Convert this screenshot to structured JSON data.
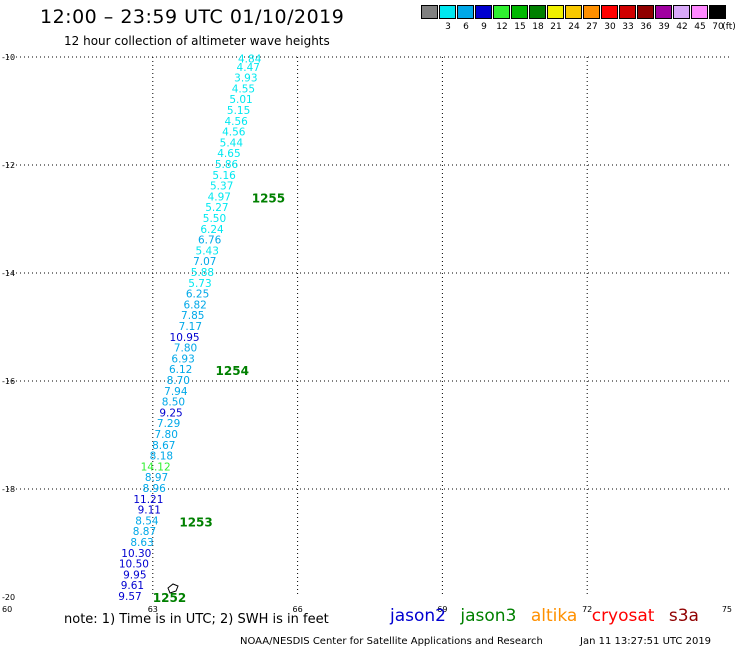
{
  "header": {
    "title": "12:00 – 23:59 UTC 01/10/2019",
    "subtitle": "12 hour collection of altimeter wave heights"
  },
  "color_scale": {
    "unit": "(ft)",
    "labels": [
      "3",
      "6",
      "9",
      "12",
      "15",
      "18",
      "21",
      "24",
      "27",
      "30",
      "33",
      "36",
      "39",
      "42",
      "45",
      "70"
    ],
    "colors": [
      "#808080",
      "#00e8f0",
      "#00a8e8",
      "#0000d0",
      "#30f030",
      "#00b800",
      "#008000",
      "#f0f000",
      "#f8c800",
      "#ff9000",
      "#ff0000",
      "#d00000",
      "#900000",
      "#a000a0",
      "#d8a8f8",
      "#ff88ff",
      "#000000"
    ]
  },
  "chart_data": {
    "type": "scatter",
    "title": "12:00 – 23:59 UTC 01/10/2019",
    "subtitle": "12 hour collection of altimeter wave heights",
    "xlim": [
      60,
      75
    ],
    "ylim": [
      -20,
      -10
    ],
    "x_ticks": [
      "60",
      "63",
      "66",
      "69",
      "72",
      "75"
    ],
    "y_ticks": [
      "-10",
      "-12",
      "-14",
      "-16",
      "-18",
      "-20"
    ],
    "x_tick_values": [
      60,
      63,
      66,
      69,
      72,
      75
    ],
    "y_tick_values": [
      -10,
      -12,
      -14,
      -16,
      -18,
      -20
    ],
    "grid": true,
    "series": [
      {
        "values": [
          {
            "x": 65.25,
            "y": -10.05,
            "label": "4.84",
            "color": "#00e8f0"
          },
          {
            "x": 65.22,
            "y": -10.2,
            "label": "4.47",
            "color": "#00e8f0"
          },
          {
            "x": 65.17,
            "y": -10.4,
            "label": "3.93",
            "color": "#00e8f0"
          },
          {
            "x": 65.12,
            "y": -10.6,
            "label": "4.55",
            "color": "#00e8f0"
          },
          {
            "x": 65.07,
            "y": -10.8,
            "label": "5.01",
            "color": "#00e8f0"
          },
          {
            "x": 65.02,
            "y": -11.0,
            "label": "5.15",
            "color": "#00e8f0"
          },
          {
            "x": 64.97,
            "y": -11.2,
            "label": "4.56",
            "color": "#00e8f0"
          },
          {
            "x": 64.92,
            "y": -11.4,
            "label": "4.56",
            "color": "#00e8f0"
          },
          {
            "x": 64.87,
            "y": -11.6,
            "label": "5.44",
            "color": "#00e8f0"
          },
          {
            "x": 64.82,
            "y": -11.8,
            "label": "4.65",
            "color": "#00e8f0"
          },
          {
            "x": 64.77,
            "y": -12.0,
            "label": "5.86",
            "color": "#00e8f0"
          },
          {
            "x": 64.72,
            "y": -12.2,
            "label": "5.16",
            "color": "#00e8f0"
          },
          {
            "x": 64.67,
            "y": -12.4,
            "label": "5.37",
            "color": "#00e8f0"
          },
          {
            "x": 64.62,
            "y": -12.6,
            "label": "4.97",
            "color": "#00e8f0"
          },
          {
            "x": 64.57,
            "y": -12.8,
            "label": "5.27",
            "color": "#00e8f0"
          },
          {
            "x": 64.52,
            "y": -13.0,
            "label": "5.50",
            "color": "#00e8f0"
          },
          {
            "x": 64.47,
            "y": -13.2,
            "label": "6.24",
            "color": "#00e8f0"
          },
          {
            "x": 64.42,
            "y": -13.4,
            "label": "6.76",
            "color": "#00a8e8"
          },
          {
            "x": 64.37,
            "y": -13.6,
            "label": "5.43",
            "color": "#00e8f0"
          },
          {
            "x": 64.32,
            "y": -13.8,
            "label": "7.07",
            "color": "#00a8e8"
          },
          {
            "x": 64.27,
            "y": -14.0,
            "label": "5.88",
            "color": "#00e8f0"
          },
          {
            "x": 64.22,
            "y": -14.2,
            "label": "5.73",
            "color": "#00e8f0"
          },
          {
            "x": 64.17,
            "y": -14.4,
            "label": "6.25",
            "color": "#00a8e8"
          },
          {
            "x": 64.12,
            "y": -14.6,
            "label": "6.82",
            "color": "#00a8e8"
          },
          {
            "x": 64.07,
            "y": -14.8,
            "label": "7.85",
            "color": "#00a8e8"
          },
          {
            "x": 64.02,
            "y": -15.0,
            "label": "7.17",
            "color": "#00a8e8"
          },
          {
            "x": 63.97,
            "y": -15.2,
            "label": "10.95",
            "color": "#0000d0"
          },
          {
            "x": 63.92,
            "y": -15.4,
            "label": "7.80",
            "color": "#00a8e8"
          },
          {
            "x": 63.87,
            "y": -15.6,
            "label": "6.93",
            "color": "#00a8e8"
          },
          {
            "x": 63.82,
            "y": -15.8,
            "label": "6.12",
            "color": "#00a8e8"
          },
          {
            "x": 63.77,
            "y": -16.0,
            "label": "8.70",
            "color": "#00a8e8"
          },
          {
            "x": 63.72,
            "y": -16.2,
            "label": "7.94",
            "color": "#00a8e8"
          },
          {
            "x": 63.67,
            "y": -16.4,
            "label": "8.50",
            "color": "#00a8e8"
          },
          {
            "x": 63.62,
            "y": -16.6,
            "label": "9.25",
            "color": "#0000d0"
          },
          {
            "x": 63.57,
            "y": -16.8,
            "label": "7.29",
            "color": "#00a8e8"
          },
          {
            "x": 63.52,
            "y": -17.0,
            "label": "7.80",
            "color": "#00a8e8"
          },
          {
            "x": 63.47,
            "y": -17.2,
            "label": "8.67",
            "color": "#00a8e8"
          },
          {
            "x": 63.42,
            "y": -17.4,
            "label": "8.18",
            "color": "#00a8e8"
          },
          {
            "x": 63.37,
            "y": -17.6,
            "label": "14.12",
            "color": "#30f030"
          },
          {
            "x": 63.32,
            "y": -17.8,
            "label": "8.97",
            "color": "#00a8e8"
          },
          {
            "x": 63.27,
            "y": -18.0,
            "label": "8.96",
            "color": "#00a8e8"
          },
          {
            "x": 63.22,
            "y": -18.2,
            "label": "11.21",
            "color": "#0000d0"
          },
          {
            "x": 63.17,
            "y": -18.4,
            "label": "9.11",
            "color": "#0000d0"
          },
          {
            "x": 63.12,
            "y": -18.6,
            "label": "8.54",
            "color": "#00a8e8"
          },
          {
            "x": 63.07,
            "y": -18.8,
            "label": "8.87",
            "color": "#00a8e8"
          },
          {
            "x": 63.02,
            "y": -19.0,
            "label": "8.63",
            "color": "#00a8e8"
          },
          {
            "x": 62.97,
            "y": -19.2,
            "label": "10.30",
            "color": "#0000d0"
          },
          {
            "x": 62.92,
            "y": -19.4,
            "label": "10.50",
            "color": "#0000d0"
          },
          {
            "x": 62.87,
            "y": -19.6,
            "label": "9.95",
            "color": "#0000d0"
          },
          {
            "x": 62.82,
            "y": -19.8,
            "label": "9.61",
            "color": "#0000d0"
          },
          {
            "x": 62.77,
            "y": -20.0,
            "label": "9.57",
            "color": "#0000d0"
          }
        ]
      }
    ],
    "annotations": [
      {
        "text": "1255",
        "x": 65.05,
        "y": -12.6,
        "color": "#008000"
      },
      {
        "text": "1254",
        "x": 64.3,
        "y": -15.8,
        "color": "#008000"
      },
      {
        "text": "1253",
        "x": 63.55,
        "y": -18.6,
        "color": "#008000"
      },
      {
        "text": "1252",
        "x": 63.0,
        "y": -20.0,
        "color": "#008000"
      }
    ]
  },
  "footer": {
    "note": "note: 1) Time is in UTC; 2) SWH is in feet",
    "satellites": [
      {
        "name": "jason2",
        "color": "#0000d0"
      },
      {
        "name": "jason3",
        "color": "#008000"
      },
      {
        "name": "altika",
        "color": "#ff9000"
      },
      {
        "name": "cryosat",
        "color": "#ff0000"
      },
      {
        "name": "s3a",
        "color": "#900000"
      }
    ],
    "credit": "NOAA/NESDIS Center for Satellite Applications and Research",
    "timestamp": "Jan 11 13:27:51 UTC 2019"
  }
}
